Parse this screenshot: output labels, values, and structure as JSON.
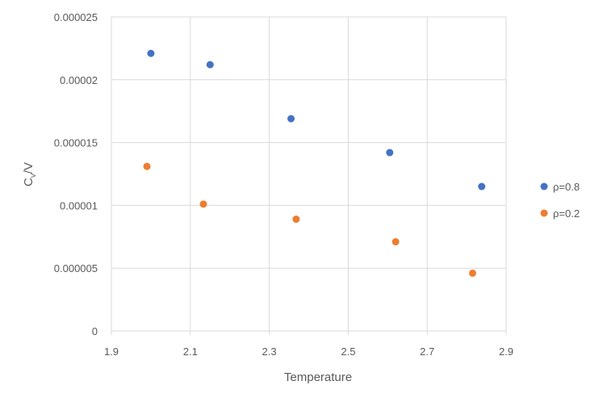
{
  "chart_data": {
    "type": "scatter",
    "title": "",
    "xlabel": "Temperature",
    "ylabel_main": "C",
    "ylabel_sub": "v",
    "ylabel_tail": "/V",
    "xlim": [
      1.9,
      2.9
    ],
    "ylim": [
      0,
      2.5e-05
    ],
    "grid": true,
    "legend_position": "right",
    "x_ticks": [
      1.9,
      2.1,
      2.3,
      2.5,
      2.7,
      2.9
    ],
    "x_tick_labels": [
      "1.9",
      "2.1",
      "2.3",
      "2.5",
      "2.7",
      "2.9"
    ],
    "y_ticks": [
      0,
      5e-06,
      1e-05,
      1.5e-05,
      2e-05,
      2.5e-05
    ],
    "y_tick_labels": [
      "0",
      "0.000005",
      "0.00001",
      "0.000015",
      "0.00002",
      "0.000025"
    ],
    "series": [
      {
        "name": "ρ=0.8",
        "color": "#4472C4",
        "x": [
          2.0,
          2.15,
          2.355,
          2.605,
          2.838
        ],
        "y": [
          2.21e-05,
          2.12e-05,
          1.69e-05,
          1.42e-05,
          1.15e-05
        ]
      },
      {
        "name": "ρ=0.2",
        "color": "#ED7D31",
        "x": [
          1.99,
          2.133,
          2.368,
          2.62,
          2.815
        ],
        "y": [
          1.31e-05,
          1.01e-05,
          8.9e-06,
          7.1e-06,
          4.6e-06
        ]
      }
    ]
  }
}
